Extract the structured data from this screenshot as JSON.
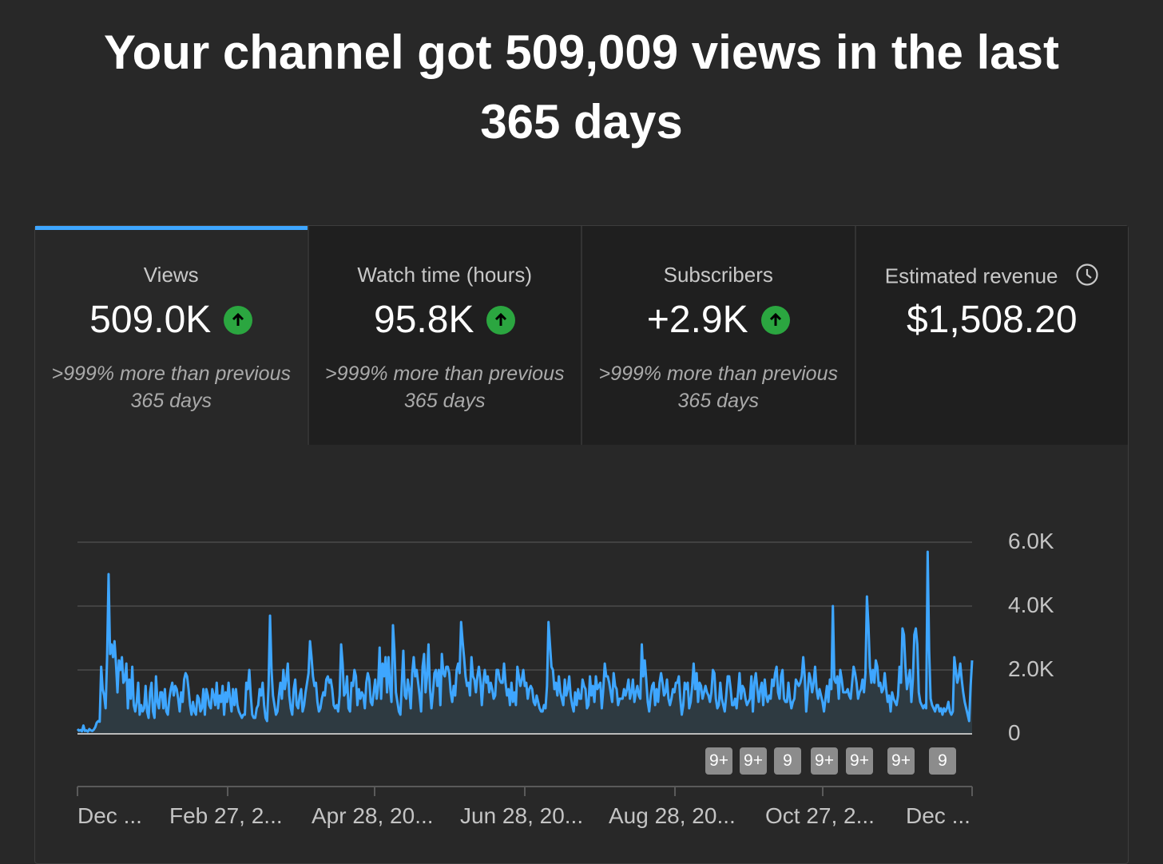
{
  "headline": {
    "line1": "Your channel got 509,009 views in the last",
    "line2": "365 days"
  },
  "tabs": [
    {
      "label": "Views",
      "value": "509.0K",
      "trend": "up",
      "compare_line1": ">999% more than previous",
      "compare_line2": "365 days",
      "active": true
    },
    {
      "label": "Watch time (hours)",
      "value": "95.8K",
      "trend": "up",
      "compare_line1": ">999% more than previous",
      "compare_line2": "365 days",
      "active": false
    },
    {
      "label": "Subscribers",
      "value": "+2.9K",
      "trend": "up",
      "compare_line1": ">999% more than previous",
      "compare_line2": "365 days",
      "active": false
    },
    {
      "label": "Estimated revenue",
      "value": "$1,508.20",
      "icon": "clock-icon",
      "active": false
    }
  ],
  "colors": {
    "background": "#282828",
    "active_tab_indicator": "#3ea6ff",
    "line": "#3ea6ff",
    "trend_up": "#2ba640",
    "marker": "#8c8c8c"
  },
  "markers": [
    "9+",
    "9+",
    "9",
    "9+",
    "9+",
    "9+",
    "9"
  ],
  "chart_data": {
    "type": "area",
    "ylim": [
      0,
      6000
    ],
    "y_ticks": [
      "6.0K",
      "4.0K",
      "2.0K",
      "0"
    ],
    "x_ticks": [
      "Dec ...",
      "Feb 27, 2...",
      "Apr 28, 20...",
      "Jun 28, 20...",
      "Aug 28, 20...",
      "Oct 27, 2...",
      "Dec ..."
    ],
    "grid": true,
    "series": [
      {
        "values": [
          150,
          100,
          120,
          80,
          260,
          90,
          110,
          70,
          150,
          110,
          90,
          130,
          210,
          350,
          400,
          380,
          2100,
          1400,
          1200,
          800,
          2400,
          5000,
          2500,
          2800,
          2400,
          2900,
          2200,
          1300,
          2300,
          2000,
          2400,
          1600,
          1700,
          2200,
          800,
          1700,
          1100,
          2100,
          900,
          700,
          1000,
          1600,
          600,
          900,
          700,
          800,
          1500,
          700,
          500,
          1300,
          1600,
          700,
          500,
          1800,
          1000,
          800,
          1300,
          1300,
          800,
          1400,
          700,
          600,
          1100,
          1400,
          1600,
          1200,
          1500,
          1400,
          1100,
          700,
          1300,
          1000,
          1700,
          1900,
          1800,
          1400,
          900,
          600,
          1000,
          700,
          600,
          1200,
          1100,
          700,
          800,
          1400,
          600,
          1400,
          1200,
          900,
          800,
          1400,
          1200,
          900,
          1600,
          800,
          1200,
          1000,
          1500,
          600,
          1300,
          1000,
          1600,
          1100,
          700,
          1400,
          900,
          1400,
          900,
          700,
          600,
          500,
          600,
          600,
          1600,
          1400,
          2000,
          1200,
          600,
          500,
          500,
          800,
          900,
          1400,
          1200,
          1600,
          900,
          500,
          400,
          1500,
          3700,
          2000,
          1200,
          900,
          600,
          700,
          1200,
          1600,
          1100,
          2000,
          1400,
          1700,
          2200,
          1200,
          800,
          600,
          1400,
          1700,
          900,
          800,
          1200,
          1400,
          700,
          900,
          1300,
          1600,
          1900,
          2900,
          2400,
          1800,
          1500,
          1600,
          1000,
          700,
          800,
          1100,
          1300,
          1200,
          1700,
          1800,
          1600,
          1700,
          1400,
          900,
          800,
          900,
          700,
          1200,
          2800,
          2200,
          1200,
          1300,
          1800,
          800,
          700,
          1600,
          1500,
          2000,
          1800,
          900,
          1400,
          1100,
          1300,
          1200,
          800,
          1600,
          1900,
          1700,
          1000,
          900,
          1300,
          1700,
          1100,
          1500,
          2700,
          1100,
          2200,
          1800,
          2400,
          1300,
          2400,
          1500,
          1000,
          3400,
          2600,
          1300,
          1000,
          700,
          600,
          1600,
          2600,
          1200,
          1100,
          1700,
          1400,
          800,
          1900,
          2400,
          1800,
          2000,
          1600,
          1200,
          700,
          2100,
          2500,
          1300,
          1800,
          2800,
          1400,
          800,
          1300,
          1900,
          2000,
          1500,
          2000,
          900,
          2500,
          1900,
          1800,
          2100,
          2100,
          1900,
          1300,
          1000,
          1500,
          1200,
          2000,
          2200,
          1900,
          3500,
          2900,
          2400,
          1800,
          1500,
          1600,
          1200,
          2400,
          1800,
          1700,
          1300,
          1800,
          2100,
          1700,
          900,
          1600,
          2000,
          1600,
          1800,
          1300,
          1600,
          1400,
          1100,
          1200,
          2000,
          2000,
          1700,
          1600,
          1600,
          2200,
          1600,
          1200,
          1400,
          900,
          1600,
          1000,
          1300,
          900,
          2100,
          1800,
          1500,
          1700,
          2000,
          1500,
          1600,
          1100,
          1400,
          1500,
          1400,
          1000,
          900,
          1200,
          1000,
          800,
          700,
          700,
          900,
          800,
          1500,
          3500,
          2800,
          2100,
          2000,
          1400,
          1600,
          1200,
          1800,
          1300,
          1100,
          900,
          1700,
          1200,
          1400,
          1800,
          1200,
          900,
          700,
          1300,
          900,
          1400,
          1100,
          1100,
          1700,
          1500,
          1400,
          800,
          900,
          1800,
          1200,
          1500,
          1000,
          1800,
          1400,
          1500,
          1600,
          800,
          1400,
          2200,
          1800,
          1800,
          1600,
          1300,
          1000,
          1900,
          1500,
          1400,
          900,
          1100,
          1100,
          1100,
          1400,
          1200,
          1400,
          1700,
          1100,
          1300,
          1700,
          1000,
          1300,
          1500,
          1200,
          1100,
          2800,
          1800,
          2300,
          1700,
          1000,
          700,
          1200,
          1500,
          1600,
          900,
          1400,
          1000,
          1600,
          1900,
          1600,
          1200,
          1300,
          1700,
          1100,
          900,
          1100,
          1400,
          1300,
          1600,
          1600,
          1800,
          1100,
          600,
          900,
          1600,
          1400,
          1600,
          800,
          1000,
          1500,
          2200,
          1400,
          1900,
          1000,
          1600,
          1500,
          1100,
          1300,
          1500,
          1300,
          1200,
          1000,
          1300,
          2000,
          1900,
          1100,
          800,
          900,
          1600,
          1100,
          900,
          700,
          1200,
          1800,
          1800,
          1400,
          900,
          900,
          1100,
          800,
          1300,
          1900,
          1100,
          1500,
          1400,
          1100,
          900,
          1000,
          1100,
          1800,
          700,
          1600,
          1900,
          1400,
          1000,
          1400,
          1600,
          900,
          1700,
          1200,
          1000,
          1200,
          1100,
          1700,
          1500,
          1900,
          2100,
          1300,
          1100,
          1800,
          2000,
          1100,
          1000,
          1000,
          1600,
          1100,
          800,
          1000,
          1100,
          1700,
          1600,
          1500,
          1600,
          1800,
          2400,
          1800,
          700,
          1300,
          1900,
          1700,
          1300,
          1600,
          2100,
          1400,
          1100,
          1400,
          1200,
          1000,
          700,
          1100,
          1500,
          1000,
          1700,
          1400,
          4000,
          1700,
          1600,
          1800,
          1100,
          2000,
          1700,
          1300,
          1300,
          1300,
          1400,
          1200,
          1100,
          1600,
          2100,
          1900,
          1600,
          1100,
          1300,
          1400,
          1700,
          1300,
          1900,
          4300,
          3400,
          2100,
          1600,
          2000,
          1600,
          2300,
          2100,
          1500,
          1600,
          1300,
          1400,
          1900,
          1400,
          1000,
          1200,
          700,
          1300,
          1100,
          1000,
          900,
          1200,
          2100,
          1600,
          3300,
          3100,
          2100,
          1400,
          1700,
          2000,
          1000,
          1700,
          3100,
          3300,
          2800,
          1300,
          1000,
          900,
          800,
          900,
          800,
          5700,
          2600,
          1100,
          900,
          800,
          700,
          900,
          900,
          700,
          800,
          600,
          800,
          700,
          800,
          1000,
          700,
          600,
          700,
          2400,
          2000,
          1600,
          1800,
          2200,
          1700,
          1300,
          1000,
          800,
          600,
          400,
          1500,
          2300
        ]
      }
    ]
  }
}
